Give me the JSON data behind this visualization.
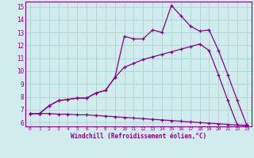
{
  "xlabel": "Windchill (Refroidissement éolien,°C)",
  "xlim": [
    -0.5,
    23.5
  ],
  "ylim": [
    5.7,
    15.4
  ],
  "xticks": [
    0,
    1,
    2,
    3,
    4,
    5,
    6,
    7,
    8,
    9,
    10,
    11,
    12,
    13,
    14,
    15,
    16,
    17,
    18,
    19,
    20,
    21,
    22,
    23
  ],
  "yticks": [
    6,
    7,
    8,
    9,
    10,
    11,
    12,
    13,
    14,
    15
  ],
  "line_color": "#880088",
  "background_color": "#d0ecec",
  "grid_color": "#b0d8d8",
  "line1_x": [
    0,
    1,
    2,
    3,
    4,
    5,
    6,
    7,
    8,
    9,
    10,
    11,
    12,
    13,
    14,
    15,
    16,
    17,
    18,
    19,
    20,
    21,
    22,
    23
  ],
  "line1_y": [
    6.7,
    6.7,
    7.3,
    7.7,
    7.8,
    7.9,
    7.9,
    8.3,
    8.5,
    9.5,
    12.7,
    12.5,
    12.5,
    13.2,
    13.0,
    15.1,
    14.3,
    13.5,
    13.1,
    13.2,
    11.6,
    9.7,
    7.7,
    5.8
  ],
  "line2_x": [
    0,
    1,
    2,
    3,
    4,
    5,
    6,
    7,
    8,
    9,
    10,
    11,
    12,
    13,
    14,
    15,
    16,
    17,
    18,
    19,
    20,
    21,
    22,
    23
  ],
  "line2_y": [
    6.7,
    6.7,
    7.3,
    7.7,
    7.8,
    7.9,
    7.9,
    8.3,
    8.5,
    9.5,
    10.3,
    10.6,
    10.9,
    11.1,
    11.3,
    11.5,
    11.7,
    11.9,
    12.1,
    11.6,
    9.7,
    7.7,
    5.8,
    5.8
  ],
  "line3_x": [
    0,
    1,
    2,
    3,
    4,
    5,
    6,
    7,
    8,
    9,
    10,
    11,
    12,
    13,
    14,
    15,
    16,
    17,
    18,
    19,
    20,
    21,
    22,
    23
  ],
  "line3_y": [
    6.7,
    6.7,
    6.7,
    6.65,
    6.65,
    6.6,
    6.6,
    6.55,
    6.5,
    6.45,
    6.4,
    6.35,
    6.3,
    6.25,
    6.2,
    6.15,
    6.1,
    6.05,
    6.0,
    5.95,
    5.9,
    5.85,
    5.8,
    5.75
  ]
}
